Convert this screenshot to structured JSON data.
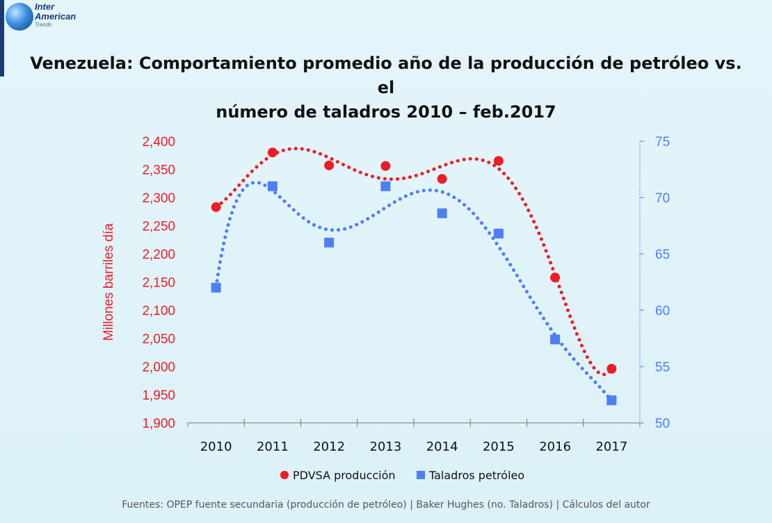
{
  "logo": {
    "line1": "Inter",
    "line2": "American",
    "line3": "Trends"
  },
  "title_line1": "Venezuela: Comportamiento promedio año de la producción de petróleo vs. el",
  "title_line2": "número de taladros 2010 – feb.2017",
  "source": "Fuentes: OPEP fuente secundaria (producción de petróleo) | Baker Hughes (no. Taladros)  | Cálculos del autor",
  "chart_data": {
    "type": "scatter",
    "categories": [
      "2010",
      "2011",
      "2012",
      "2013",
      "2014",
      "2015",
      "2016",
      "2017"
    ],
    "ylabel": "Millones barriles día",
    "ylim": [
      1900,
      2400
    ],
    "yticks": [
      "1,900",
      "1,950",
      "2,000",
      "2,050",
      "2,100",
      "2,150",
      "2,200",
      "2,250",
      "2,300",
      "2,350",
      "2,400"
    ],
    "y2lim": [
      50,
      75
    ],
    "y2ticks": [
      "50",
      "55",
      "60",
      "65",
      "70",
      "75"
    ],
    "legend_position": "bottom",
    "series": [
      {
        "name": "PDVSA producción",
        "axis": "left",
        "marker": "circle",
        "color": "#ee1c25",
        "values": [
          2283,
          2380,
          2357,
          2356,
          2333,
          2365,
          2158,
          1996
        ]
      },
      {
        "name": "Taladros petróleo",
        "axis": "right",
        "marker": "square",
        "color": "#4f7df2",
        "values": [
          62,
          71,
          66,
          71,
          68.6,
          66.8,
          57.4,
          52
        ]
      }
    ],
    "trendlines": true
  }
}
